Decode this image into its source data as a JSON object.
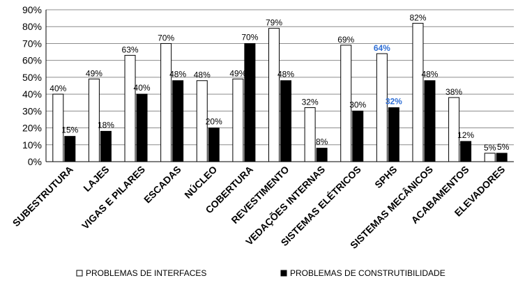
{
  "chart_data": {
    "type": "bar",
    "title": "",
    "xlabel": "",
    "ylabel": "",
    "ylim": [
      0,
      90
    ],
    "yticks": [
      "0%",
      "10%",
      "20%",
      "30%",
      "40%",
      "50%",
      "60%",
      "70%",
      "80%",
      "90%"
    ],
    "grid": true,
    "legend_position": "bottom",
    "categories": [
      "SUBESTRUTURA",
      "LAJES",
      "VIGAS E PILARES",
      "ESCADAS",
      "NÚCLEO",
      "COBERTURA",
      "REVESTIMENTO",
      "VEDAÇÕES INTERNAS",
      "SISTEMAS ELÉTRICOS",
      "SPHS",
      "SISTEMAS MECÂNICOS",
      "ACABAMENTOS",
      "ELEVADORES"
    ],
    "series": [
      {
        "name": "PROBLEMAS DE INTERFACES",
        "color": "#ffffff",
        "values": [
          40,
          49,
          63,
          70,
          48,
          49,
          79,
          32,
          69,
          64,
          82,
          38,
          5
        ],
        "labels": [
          "40%",
          "49%",
          "63%",
          "70%",
          "48%",
          "49%",
          "79%",
          "32%",
          "69%",
          "64%",
          "82%",
          "38%",
          "5%"
        ]
      },
      {
        "name": "PROBLEMAS DE CONSTRUTIBILIDADE",
        "color": "#000000",
        "values": [
          15,
          18,
          40,
          48,
          20,
          70,
          48,
          8,
          30,
          32,
          48,
          12,
          5
        ],
        "labels": [
          "15%",
          "18%",
          "40%",
          "48%",
          "20%",
          "70%",
          "48%",
          "8%",
          "30%",
          "32%",
          "48%",
          "12%",
          "5%"
        ]
      }
    ],
    "highlight_category": "SPHS",
    "highlight_color": "#2f6fd6"
  }
}
